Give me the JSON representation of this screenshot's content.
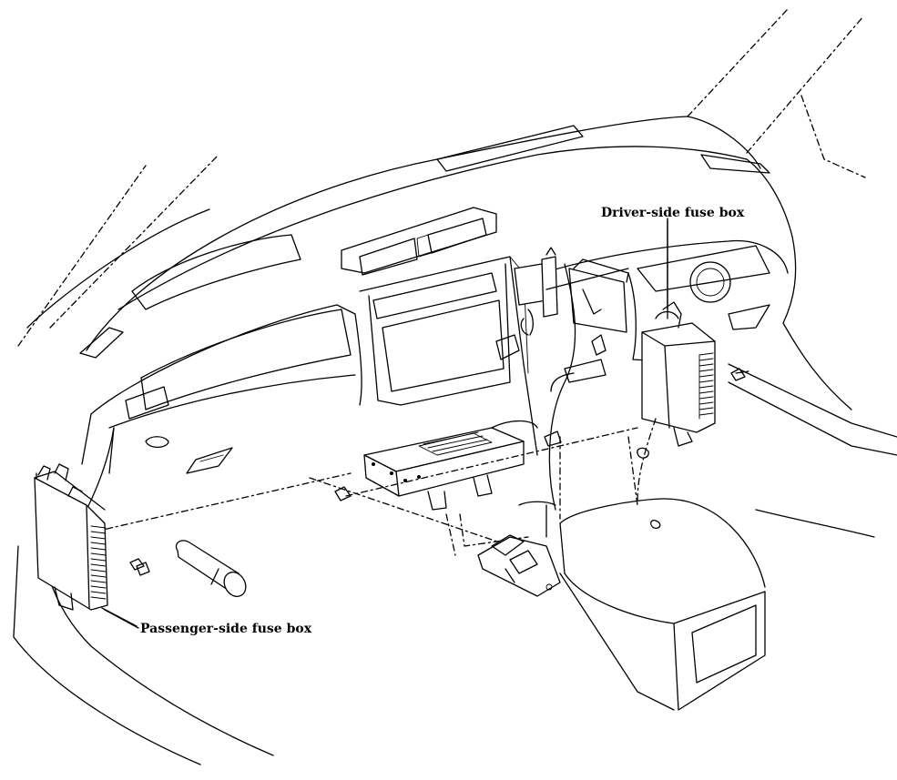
{
  "labels": {
    "driver_fuse_box": "Driver-side fuse box",
    "passenger_fuse_box": "Passenger-side fuse box"
  }
}
